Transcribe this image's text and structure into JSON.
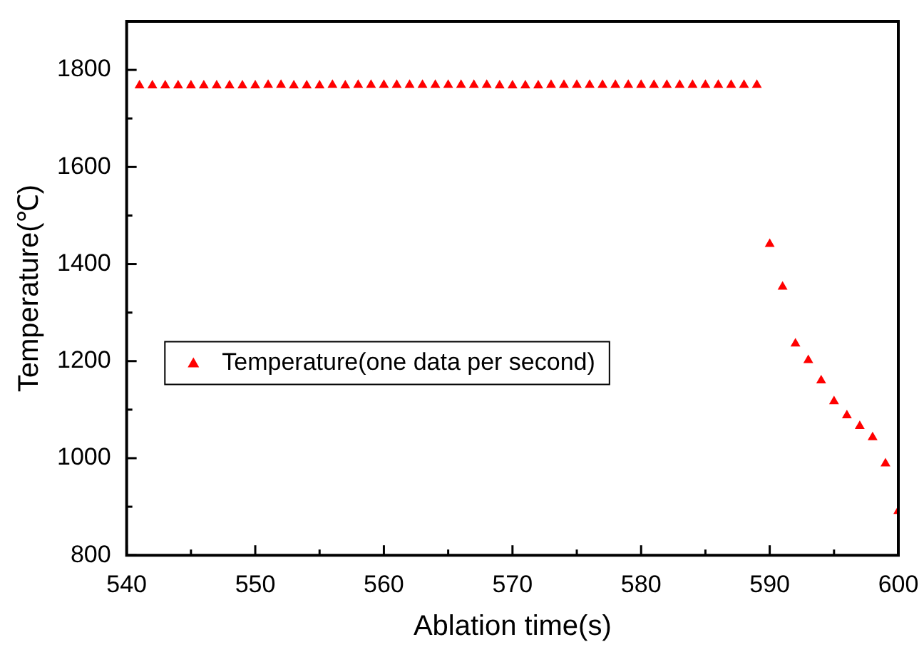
{
  "chart_data": {
    "type": "scatter",
    "xlabel": "Ablation time(s)",
    "ylabel": "Temperature(℃)",
    "marker": "triangle",
    "legend": "left",
    "grid": false,
    "xlim": [
      540,
      600
    ],
    "xticks": [
      540,
      {
        "value": 545,
        "label": null
      },
      550,
      {
        "value": 555,
        "label": null
      },
      560,
      {
        "value": 565,
        "label": null
      },
      570,
      {
        "value": 575,
        "label": null
      },
      580,
      {
        "value": 585,
        "label": null
      },
      590,
      {
        "value": 595,
        "label": null
      },
      600
    ],
    "ylim": [
      800,
      1900
    ],
    "yticks": [
      800,
      {
        "value": 900,
        "label": null
      },
      1000,
      {
        "value": 1100,
        "label": null
      },
      1200,
      {
        "value": 1300,
        "label": null
      },
      1400,
      {
        "value": 1500,
        "label": null
      },
      1600,
      {
        "value": 1700,
        "label": null
      },
      1800
    ],
    "series": [
      {
        "name": "Temperature(one data per second)",
        "color": "#ff0000",
        "x": [
          541,
          542,
          543,
          544,
          545,
          546,
          547,
          548,
          549,
          550,
          551,
          552,
          553,
          554,
          555,
          556,
          557,
          558,
          559,
          560,
          561,
          562,
          563,
          564,
          565,
          566,
          567,
          568,
          569,
          570,
          571,
          572,
          573,
          574,
          575,
          576,
          577,
          578,
          579,
          580,
          581,
          582,
          583,
          584,
          585,
          586,
          587,
          588,
          589,
          590,
          591,
          592,
          593,
          594,
          595,
          596,
          597,
          598,
          599,
          600
        ],
        "values": [
          1768,
          1768,
          1768,
          1768,
          1768,
          1768,
          1768,
          1768,
          1768,
          1768,
          1769,
          1769,
          1768,
          1768,
          1768,
          1769,
          1768,
          1769,
          1769,
          1769,
          1769,
          1769,
          1769,
          1769,
          1769,
          1769,
          1769,
          1769,
          1768,
          1768,
          1768,
          1768,
          1769,
          1769,
          1769,
          1769,
          1769,
          1769,
          1769,
          1769,
          1769,
          1769,
          1769,
          1769,
          1769,
          1769,
          1769,
          1769,
          1769,
          1441,
          1353,
          1236,
          1202,
          1160,
          1117,
          1088,
          1066,
          1043,
          989,
          891
        ]
      }
    ]
  }
}
